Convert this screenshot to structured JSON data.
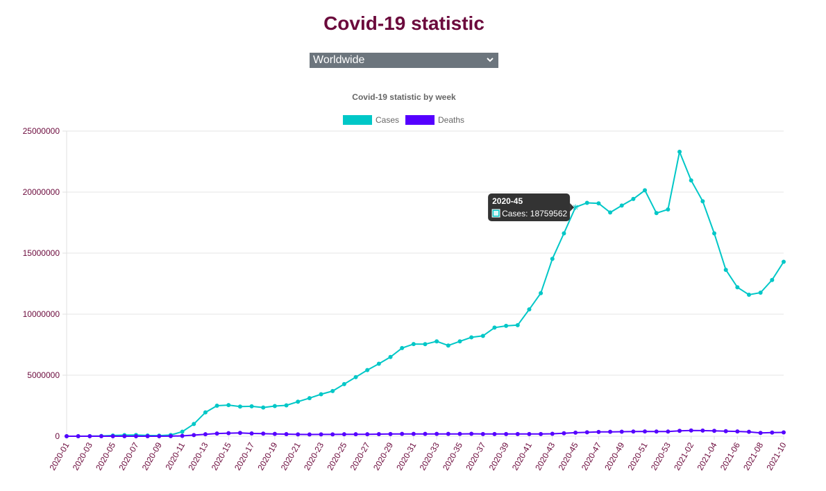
{
  "page": {
    "title": "Covid-19 statistic",
    "region_select": {
      "value": "Worldwide"
    }
  },
  "colors": {
    "title": "#6b0a3c",
    "cases": "#00c7c7",
    "deaths": "#5500ff",
    "axis_text": "#6b0a3c",
    "select_bg": "#6c757d"
  },
  "tooltip": {
    "title": "2020-45",
    "body": "Cases: 18759562",
    "index": 44
  },
  "chart_data": {
    "type": "line",
    "title": "Covid-19 statistic by week",
    "legend_position": "top",
    "grid": true,
    "ylim": [
      0,
      25000000
    ],
    "y_ticks": [
      0,
      5000000,
      10000000,
      15000000,
      20000000,
      25000000
    ],
    "x": [
      "2020-01",
      "2020-02",
      "2020-03",
      "2020-04",
      "2020-05",
      "2020-06",
      "2020-07",
      "2020-08",
      "2020-09",
      "2020-10",
      "2020-11",
      "2020-12",
      "2020-13",
      "2020-14",
      "2020-15",
      "2020-16",
      "2020-17",
      "2020-18",
      "2020-19",
      "2020-20",
      "2020-21",
      "2020-22",
      "2020-23",
      "2020-24",
      "2020-25",
      "2020-26",
      "2020-27",
      "2020-28",
      "2020-29",
      "2020-30",
      "2020-31",
      "2020-32",
      "2020-33",
      "2020-34",
      "2020-35",
      "2020-36",
      "2020-37",
      "2020-38",
      "2020-39",
      "2020-40",
      "2020-41",
      "2020-42",
      "2020-43",
      "2020-44",
      "2020-45",
      "2020-46",
      "2020-47",
      "2020-48",
      "2020-49",
      "2020-50",
      "2020-51",
      "2020-52",
      "2020-53",
      "2021-01",
      "2021-02",
      "2021-03",
      "2021-04",
      "2021-05",
      "2021-06",
      "2021-07",
      "2021-08",
      "2021-09",
      "2021-10"
    ],
    "x_tick_labels": [
      "2020-01",
      "2020-03",
      "2020-05",
      "2020-07",
      "2020-09",
      "2020-11",
      "2020-13",
      "2020-15",
      "2020-17",
      "2020-19",
      "2020-21",
      "2020-23",
      "2020-25",
      "2020-27",
      "2020-29",
      "2020-31",
      "2020-33",
      "2020-35",
      "2020-37",
      "2020-39",
      "2020-41",
      "2020-43",
      "2020-45",
      "2020-47",
      "2020-49",
      "2020-51",
      "2020-53",
      "2021-02",
      "2021-04",
      "2021-06",
      "2021-08",
      "2021-10"
    ],
    "series": [
      {
        "name": "Cases",
        "values": [
          0,
          2000,
          5000,
          20000,
          60000,
          90000,
          100000,
          60000,
          50000,
          100000,
          370000,
          1000000,
          1950000,
          2500000,
          2550000,
          2430000,
          2450000,
          2350000,
          2470000,
          2530000,
          2830000,
          3120000,
          3440000,
          3700000,
          4270000,
          4840000,
          5420000,
          5940000,
          6490000,
          7220000,
          7550000,
          7540000,
          7770000,
          7430000,
          7770000,
          8100000,
          8220000,
          8900000,
          9040000,
          9100000,
          10390000,
          11720000,
          14530000,
          16620000,
          18759562,
          19120000,
          19080000,
          18330000,
          18900000,
          19440000,
          20150000,
          18280000,
          18580000,
          23300000,
          20960000,
          19250000,
          16620000,
          13630000,
          12200000,
          11590000,
          11760000,
          12800000,
          14290000
        ]
      },
      {
        "name": "Deaths",
        "values": [
          0,
          0,
          0,
          0,
          0,
          0,
          0,
          0,
          0,
          5000,
          30000,
          90000,
          160000,
          220000,
          250000,
          270000,
          230000,
          210000,
          190000,
          170000,
          150000,
          140000,
          150000,
          150000,
          160000,
          160000,
          160000,
          170000,
          180000,
          190000,
          190000,
          190000,
          190000,
          190000,
          190000,
          200000,
          180000,
          180000,
          180000,
          180000,
          180000,
          180000,
          200000,
          240000,
          290000,
          320000,
          350000,
          360000,
          370000,
          380000,
          390000,
          380000,
          380000,
          440000,
          470000,
          460000,
          440000,
          410000,
          390000,
          360000,
          270000,
          300000,
          310000
        ]
      }
    ]
  }
}
